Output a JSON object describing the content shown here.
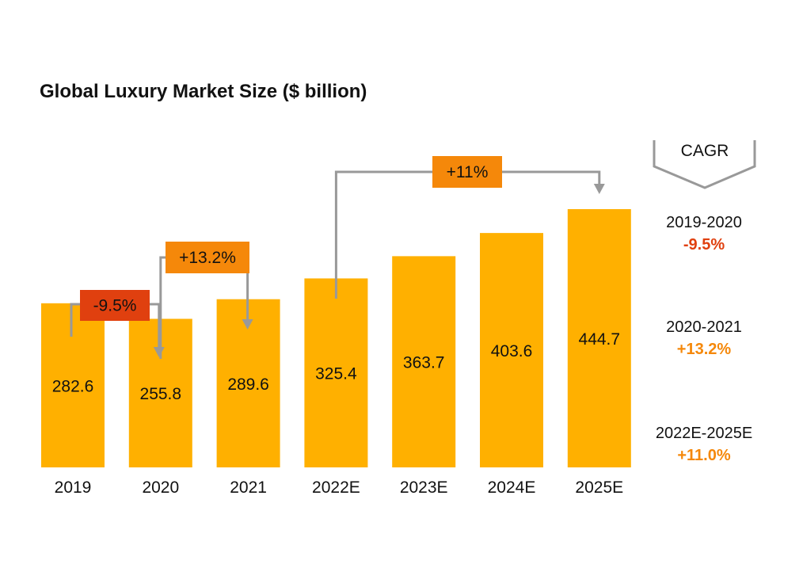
{
  "chart_data": {
    "type": "bar",
    "title": "Global Luxury Market Size ($ billion)",
    "xlabel": "",
    "ylabel": "",
    "ylim": [
      0,
      500
    ],
    "categories": [
      "2019",
      "2020",
      "2021",
      "2022E",
      "2023E",
      "2024E",
      "2025E"
    ],
    "values": [
      282.6,
      255.8,
      289.6,
      325.4,
      363.7,
      403.6,
      444.7
    ],
    "value_labels": [
      "282.6",
      "255.8",
      "289.6",
      "325.4",
      "363.7",
      "403.6",
      "444.7"
    ],
    "bar_color": "#FFB000",
    "grid": false,
    "annotations": [
      {
        "from": 0,
        "to": 1,
        "label": "-9.5%",
        "color": "#E0400F"
      },
      {
        "from": 1,
        "to": 2,
        "label": "+13.2%",
        "color": "#F5880A"
      },
      {
        "from": 3,
        "to": 6,
        "label": "+11%",
        "color": "#F5880A"
      }
    ],
    "cagr": {
      "heading": "CAGR",
      "entries": [
        {
          "period": "2019-2020",
          "value": "-9.5%",
          "color": "#E0400F"
        },
        {
          "period": "2020-2021",
          "value": "+13.2%",
          "color": "#F5880A"
        },
        {
          "period": "2022E-2025E",
          "value": "+11.0%",
          "color": "#F5880A"
        }
      ]
    }
  }
}
